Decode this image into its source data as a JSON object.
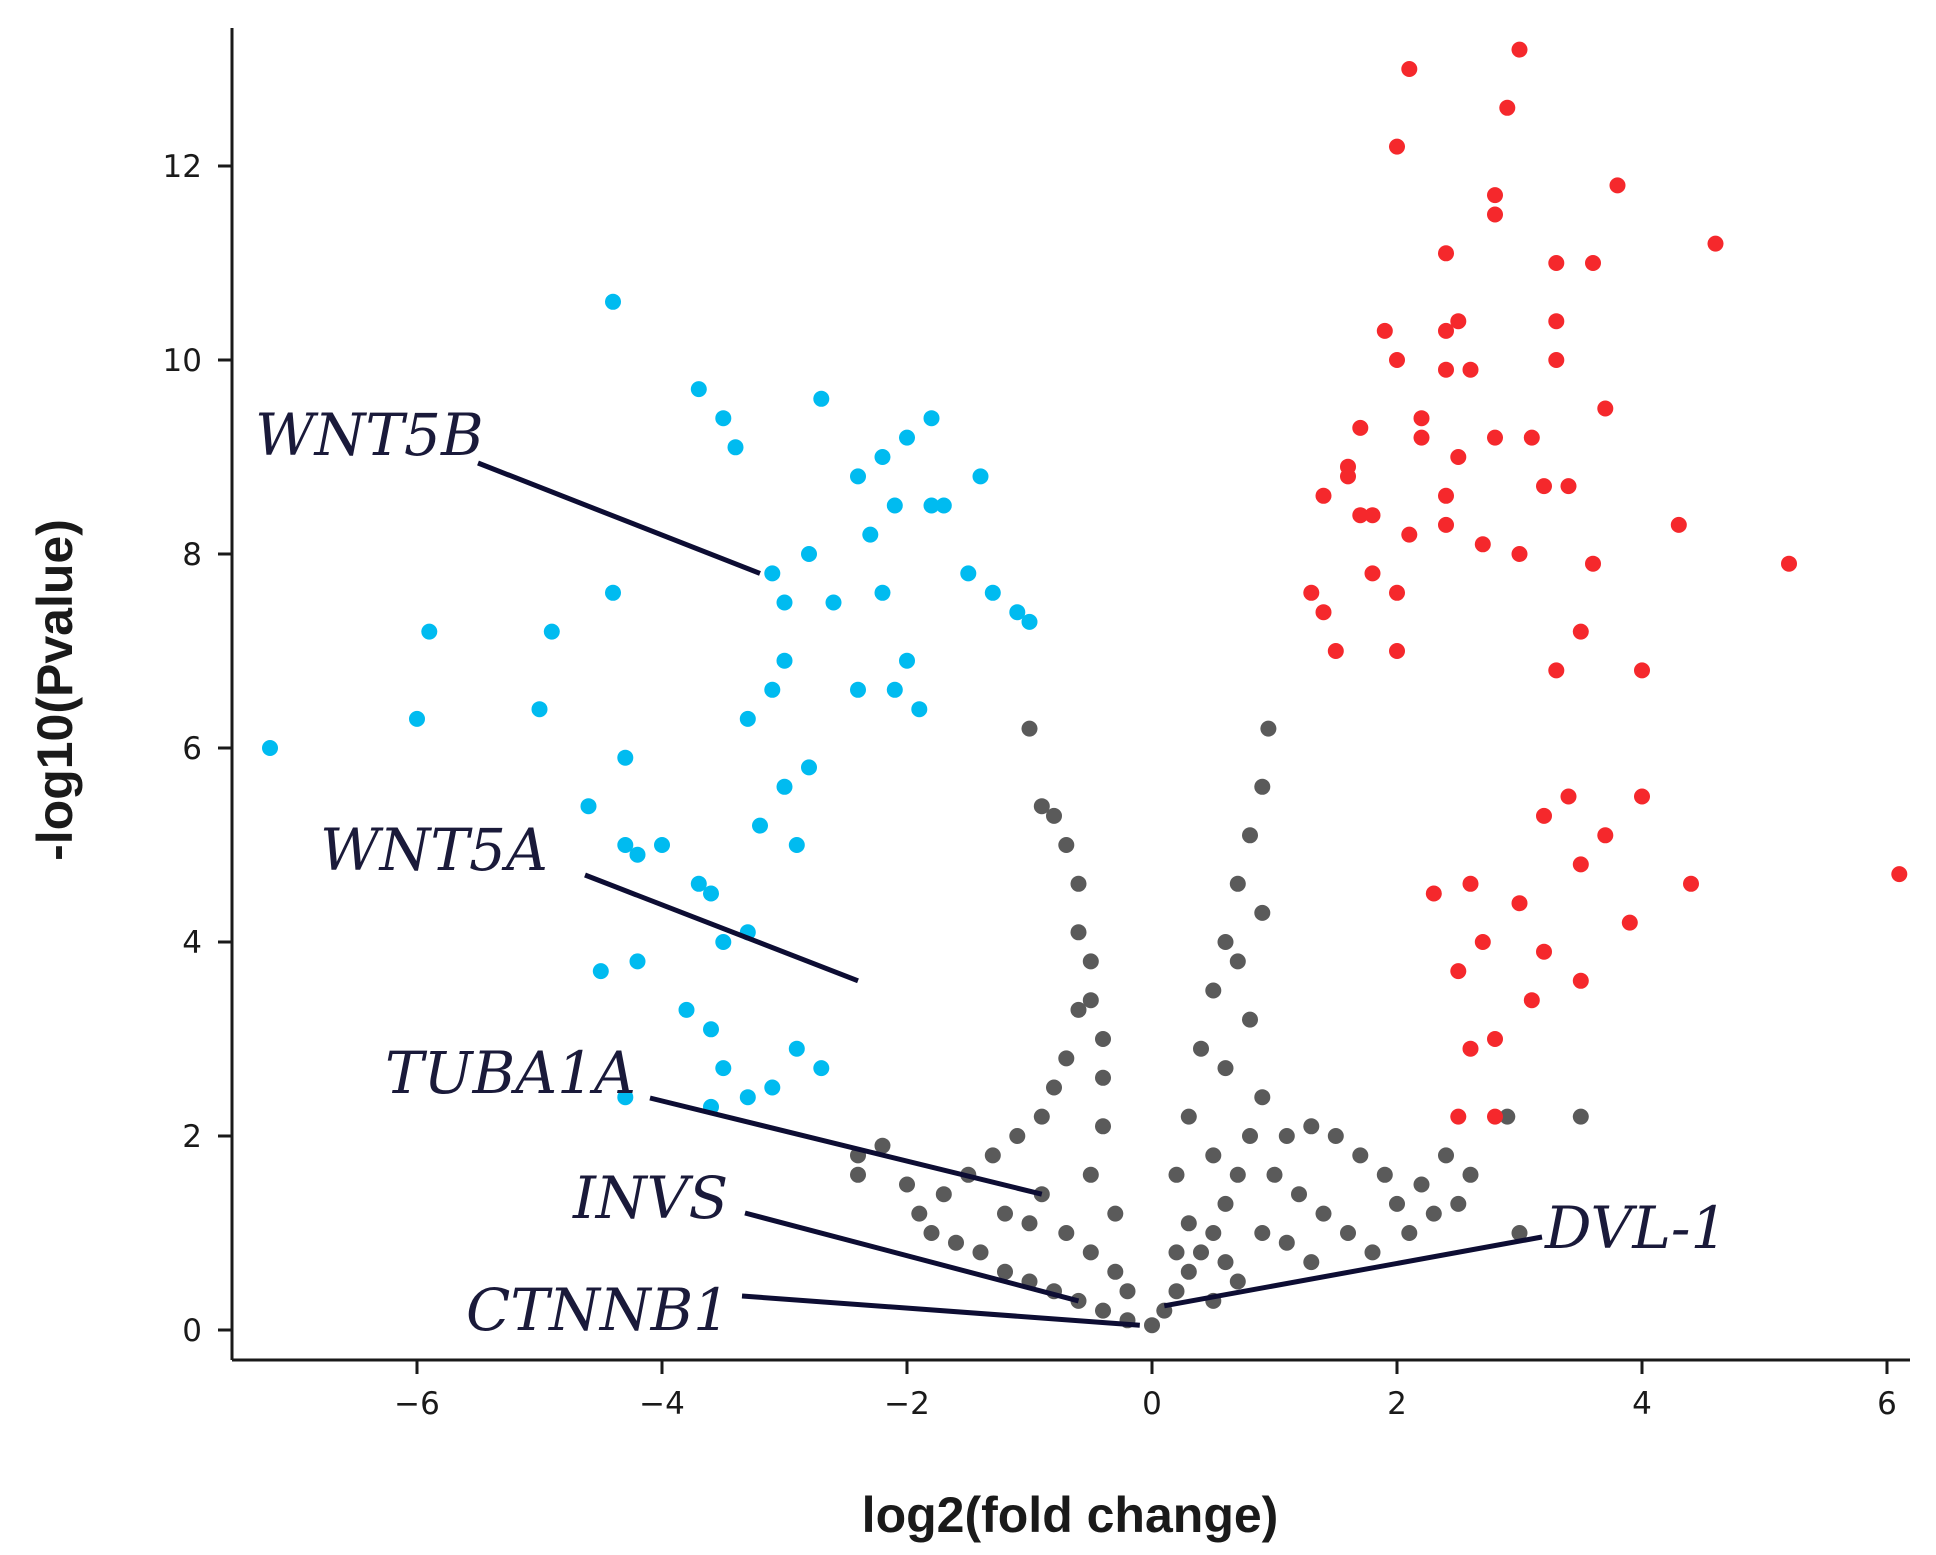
{
  "chart_data": {
    "type": "scatter",
    "title": "",
    "xlabel": "log2(fold change)",
    "ylabel": "-log10(Pvalue)",
    "xlim": [
      -7.5,
      6.3
    ],
    "ylim": [
      -0.3,
      13.8
    ],
    "xticks": [
      -6,
      -4,
      -2,
      0,
      2,
      4,
      6
    ],
    "yticks": [
      0,
      2,
      4,
      6,
      8,
      10,
      12
    ],
    "xtick_labels": [
      "−6",
      "−4",
      "−2",
      "0",
      "2",
      "4",
      "6"
    ],
    "ytick_labels": [
      "0",
      "2",
      "4",
      "6",
      "8",
      "10",
      "12"
    ],
    "colors": {
      "down": "#00bbf0",
      "up": "#f5282c",
      "ns": "#5a5a5a",
      "axis": "#1a1a1a",
      "leader": "#0d0d33"
    },
    "series": [
      {
        "name": "down",
        "points": [
          [
            -7.2,
            6.0
          ],
          [
            -6.0,
            6.3
          ],
          [
            -5.9,
            7.2
          ],
          [
            -5.0,
            6.4
          ],
          [
            -4.9,
            7.2
          ],
          [
            -4.4,
            10.6
          ],
          [
            -4.4,
            7.6
          ],
          [
            -4.3,
            5.9
          ],
          [
            -4.3,
            5.0
          ],
          [
            -4.2,
            4.9
          ],
          [
            -4.0,
            5.0
          ],
          [
            -3.7,
            9.7
          ],
          [
            -3.5,
            9.4
          ],
          [
            -3.4,
            9.1
          ],
          [
            -2.7,
            9.6
          ],
          [
            -1.8,
            9.4
          ],
          [
            -1.4,
            8.8
          ],
          [
            -2.0,
            9.2
          ],
          [
            -2.2,
            9.0
          ],
          [
            -2.4,
            8.8
          ],
          [
            -2.3,
            8.2
          ],
          [
            -2.1,
            8.5
          ],
          [
            -1.8,
            8.5
          ],
          [
            -1.7,
            8.5
          ],
          [
            -3.1,
            7.8
          ],
          [
            -3.0,
            7.5
          ],
          [
            -2.8,
            8.0
          ],
          [
            -2.6,
            7.5
          ],
          [
            -2.2,
            7.6
          ],
          [
            -1.5,
            7.8
          ],
          [
            -1.3,
            7.6
          ],
          [
            -1.1,
            7.4
          ],
          [
            -1.0,
            7.3
          ],
          [
            -4.6,
            5.4
          ],
          [
            -4.5,
            3.7
          ],
          [
            -4.2,
            3.8
          ],
          [
            -3.8,
            3.3
          ],
          [
            -3.6,
            3.1
          ],
          [
            -3.5,
            2.7
          ],
          [
            -3.3,
            2.4
          ],
          [
            -3.1,
            2.5
          ],
          [
            -2.9,
            2.9
          ],
          [
            -2.7,
            2.7
          ],
          [
            -4.3,
            2.4
          ],
          [
            -3.6,
            2.3
          ],
          [
            -3.7,
            4.6
          ],
          [
            -3.5,
            4.0
          ],
          [
            -3.3,
            4.1
          ],
          [
            -3.2,
            5.2
          ],
          [
            -3.0,
            5.6
          ],
          [
            -2.9,
            5.0
          ],
          [
            -2.8,
            5.8
          ],
          [
            -3.1,
            6.6
          ],
          [
            -3.0,
            6.9
          ],
          [
            -3.6,
            4.5
          ],
          [
            -3.3,
            6.3
          ],
          [
            -2.4,
            6.6
          ],
          [
            -2.1,
            6.6
          ],
          [
            -2.0,
            6.9
          ],
          [
            -1.9,
            6.4
          ]
        ]
      },
      {
        "name": "up",
        "points": [
          [
            3.0,
            13.2
          ],
          [
            2.1,
            13.0
          ],
          [
            2.9,
            12.6
          ],
          [
            2.0,
            12.2
          ],
          [
            3.8,
            11.8
          ],
          [
            2.8,
            11.7
          ],
          [
            2.8,
            11.5
          ],
          [
            4.6,
            11.2
          ],
          [
            2.4,
            11.1
          ],
          [
            3.3,
            11.0
          ],
          [
            3.6,
            11.0
          ],
          [
            1.9,
            10.3
          ],
          [
            2.4,
            10.3
          ],
          [
            2.5,
            10.4
          ],
          [
            3.3,
            10.4
          ],
          [
            2.0,
            10.0
          ],
          [
            2.4,
            9.9
          ],
          [
            2.6,
            9.9
          ],
          [
            3.3,
            10.0
          ],
          [
            3.7,
            9.5
          ],
          [
            2.2,
            9.4
          ],
          [
            2.2,
            9.2
          ],
          [
            2.5,
            9.0
          ],
          [
            2.8,
            9.2
          ],
          [
            3.1,
            9.2
          ],
          [
            1.7,
            9.3
          ],
          [
            1.6,
            8.8
          ],
          [
            1.6,
            8.9
          ],
          [
            2.4,
            8.6
          ],
          [
            3.2,
            8.7
          ],
          [
            3.4,
            8.7
          ],
          [
            4.3,
            8.3
          ],
          [
            5.2,
            7.9
          ],
          [
            1.4,
            8.6
          ],
          [
            1.7,
            8.4
          ],
          [
            1.8,
            8.4
          ],
          [
            2.1,
            8.2
          ],
          [
            2.4,
            8.3
          ],
          [
            2.7,
            8.1
          ],
          [
            3.0,
            8.0
          ],
          [
            3.6,
            7.9
          ],
          [
            1.8,
            7.8
          ],
          [
            2.0,
            7.6
          ],
          [
            1.3,
            7.6
          ],
          [
            1.4,
            7.4
          ],
          [
            1.5,
            7.0
          ],
          [
            2.0,
            7.0
          ],
          [
            3.3,
            6.8
          ],
          [
            3.5,
            7.2
          ],
          [
            4.0,
            6.8
          ],
          [
            6.1,
            4.7
          ],
          [
            4.4,
            4.6
          ],
          [
            4.0,
            5.5
          ],
          [
            3.7,
            5.1
          ],
          [
            3.5,
            4.8
          ],
          [
            3.4,
            5.5
          ],
          [
            3.2,
            5.3
          ],
          [
            3.9,
            4.2
          ],
          [
            3.5,
            3.6
          ],
          [
            3.1,
            3.4
          ],
          [
            2.8,
            3.0
          ],
          [
            2.6,
            2.9
          ],
          [
            2.5,
            2.2
          ],
          [
            2.8,
            2.2
          ],
          [
            3.2,
            3.9
          ],
          [
            3.0,
            4.4
          ],
          [
            2.7,
            4.0
          ],
          [
            2.6,
            4.6
          ],
          [
            2.3,
            4.5
          ],
          [
            2.5,
            3.7
          ]
        ]
      },
      {
        "name": "ns",
        "points": [
          [
            -1.0,
            6.2
          ],
          [
            -0.9,
            5.4
          ],
          [
            -0.8,
            5.3
          ],
          [
            -0.7,
            5.0
          ],
          [
            -0.6,
            4.6
          ],
          [
            -0.6,
            4.1
          ],
          [
            -0.5,
            3.8
          ],
          [
            -0.5,
            3.4
          ],
          [
            -0.4,
            3.0
          ],
          [
            -0.4,
            2.6
          ],
          [
            -0.6,
            3.3
          ],
          [
            -0.7,
            2.8
          ],
          [
            -0.8,
            2.5
          ],
          [
            -0.9,
            2.2
          ],
          [
            -1.1,
            2.0
          ],
          [
            -1.3,
            1.8
          ],
          [
            -1.5,
            1.6
          ],
          [
            -1.7,
            1.4
          ],
          [
            -1.9,
            1.2
          ],
          [
            -2.0,
            1.5
          ],
          [
            -1.8,
            1.0
          ],
          [
            -1.6,
            0.9
          ],
          [
            -1.4,
            0.8
          ],
          [
            -1.2,
            0.6
          ],
          [
            -1.0,
            0.5
          ],
          [
            -0.8,
            0.4
          ],
          [
            -0.6,
            0.3
          ],
          [
            -0.4,
            0.2
          ],
          [
            -0.2,
            0.1
          ],
          [
            -2.2,
            1.9
          ],
          [
            -2.4,
            1.8
          ],
          [
            -2.4,
            1.6
          ],
          [
            -1.2,
            1.2
          ],
          [
            -1.0,
            1.1
          ],
          [
            -0.9,
            1.4
          ],
          [
            -0.7,
            1.0
          ],
          [
            -0.5,
            0.8
          ],
          [
            -0.3,
            0.6
          ],
          [
            -0.2,
            0.4
          ],
          [
            -0.3,
            1.2
          ],
          [
            -0.5,
            1.6
          ],
          [
            -0.4,
            2.1
          ],
          [
            0.0,
            0.05
          ],
          [
            0.1,
            0.2
          ],
          [
            0.2,
            0.4
          ],
          [
            0.3,
            0.6
          ],
          [
            0.4,
            0.8
          ],
          [
            0.5,
            1.0
          ],
          [
            0.6,
            1.3
          ],
          [
            0.7,
            1.6
          ],
          [
            0.8,
            2.0
          ],
          [
            0.9,
            2.4
          ],
          [
            1.0,
            1.6
          ],
          [
            1.2,
            1.4
          ],
          [
            1.4,
            1.2
          ],
          [
            1.6,
            1.0
          ],
          [
            1.8,
            0.8
          ],
          [
            2.0,
            1.3
          ],
          [
            2.2,
            1.5
          ],
          [
            2.4,
            1.8
          ],
          [
            2.6,
            1.6
          ],
          [
            2.5,
            1.3
          ],
          [
            2.3,
            1.2
          ],
          [
            2.1,
            1.0
          ],
          [
            1.9,
            1.6
          ],
          [
            1.7,
            1.8
          ],
          [
            1.5,
            2.0
          ],
          [
            1.3,
            2.1
          ],
          [
            1.1,
            2.0
          ],
          [
            2.9,
            2.2
          ],
          [
            3.5,
            2.2
          ],
          [
            3.0,
            1.0
          ],
          [
            0.4,
            2.9
          ],
          [
            0.5,
            3.5
          ],
          [
            0.6,
            4.0
          ],
          [
            0.7,
            4.6
          ],
          [
            0.8,
            5.1
          ],
          [
            0.9,
            5.6
          ],
          [
            0.95,
            6.2
          ],
          [
            0.3,
            2.2
          ],
          [
            0.2,
            1.6
          ],
          [
            0.6,
            2.7
          ],
          [
            0.8,
            3.2
          ],
          [
            0.7,
            3.8
          ],
          [
            0.9,
            4.3
          ],
          [
            0.5,
            1.8
          ],
          [
            0.3,
            1.1
          ],
          [
            0.9,
            1.0
          ],
          [
            1.1,
            0.9
          ],
          [
            1.3,
            0.7
          ],
          [
            0.7,
            0.5
          ],
          [
            0.5,
            0.3
          ],
          [
            0.2,
            0.8
          ],
          [
            0.6,
            0.7
          ]
        ]
      }
    ],
    "annotations": [
      {
        "label": "WNT5B",
        "point": [
          -3.2,
          7.8
        ]
      },
      {
        "label": "WNT5A",
        "point": [
          -2.4,
          3.6
        ]
      },
      {
        "label": "TUBA1A",
        "point": [
          -0.9,
          1.4
        ]
      },
      {
        "label": "INVS",
        "point": [
          -0.6,
          0.3
        ]
      },
      {
        "label": "CTNNB1",
        "point": [
          -0.1,
          0.05
        ]
      },
      {
        "label": "DVL-1",
        "point": [
          0.1,
          0.25
        ]
      }
    ]
  }
}
